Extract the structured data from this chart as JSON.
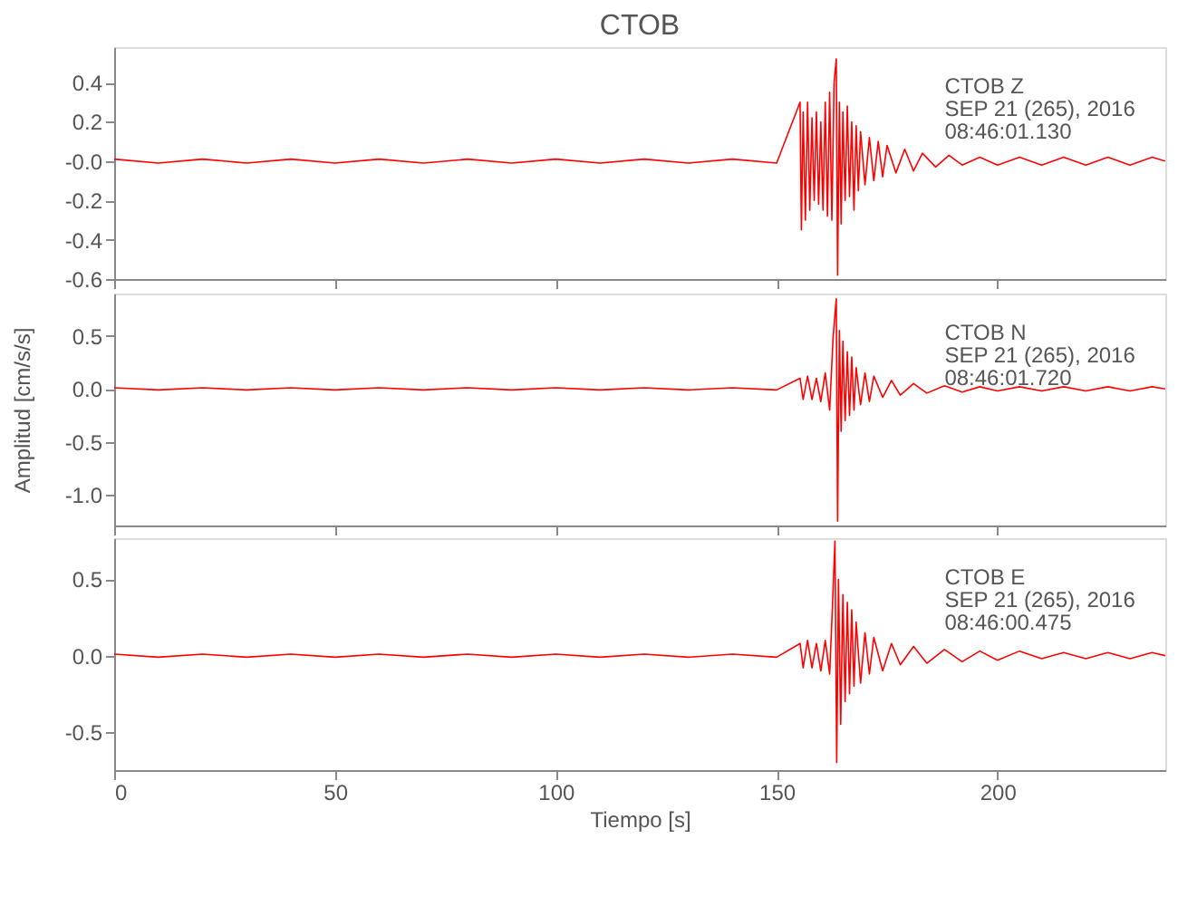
{
  "chart_data": [
    {
      "type": "line",
      "title": "CTOB",
      "annotations": [
        "CTOB   Z",
        "SEP 21 (265), 2016",
        "08:46:01.130"
      ],
      "xlim": [
        0,
        238
      ],
      "xticks": [
        0,
        50,
        100,
        150,
        200
      ],
      "ylim": [
        -0.6,
        0.58
      ],
      "yticks": [
        {
          "value": -0.6,
          "label": "-0.6"
        },
        {
          "value": -0.4,
          "label": "-0.4"
        },
        {
          "value": -0.2,
          "label": "-0.2"
        },
        {
          "value": 0,
          "label": "-0.0"
        },
        {
          "value": 0.2,
          "label": "0.2"
        },
        {
          "value": 0.4,
          "label": "0.4"
        }
      ],
      "tick_labels": "y",
      "grid": false,
      "marker": "none",
      "line_style": "solid",
      "series": [
        {
          "color": "#ff0000",
          "x": [
            0,
            10,
            20,
            30,
            40,
            50,
            60,
            70,
            80,
            90,
            100,
            110,
            120,
            130,
            140,
            150,
            155.3,
            155.6,
            156,
            156.5,
            157,
            157.5,
            158,
            158.5,
            159,
            159.5,
            160,
            160.5,
            161,
            161.5,
            162,
            162.5,
            163,
            163.5,
            163.8,
            164.2,
            164.6,
            165,
            165.5,
            166,
            166.5,
            167,
            167.5,
            168,
            168.5,
            169,
            170,
            171,
            172,
            173,
            174,
            175,
            177,
            179,
            181,
            183,
            186,
            189,
            192,
            196,
            200,
            205,
            210,
            215,
            220,
            225,
            230,
            235,
            238
          ],
          "values": [
            0.01,
            -0.01,
            0.01,
            -0.01,
            0.01,
            -0.01,
            0.01,
            -0.01,
            0.01,
            -0.01,
            0.01,
            -0.01,
            0.01,
            -0.01,
            0.01,
            -0.01,
            0.3,
            -0.35,
            0.25,
            -0.3,
            0.3,
            -0.25,
            0.22,
            -0.2,
            0.25,
            -0.22,
            0.2,
            -0.25,
            0.3,
            -0.28,
            0.35,
            -0.3,
            0.4,
            0.52,
            -0.58,
            0.3,
            -0.32,
            0.25,
            -0.2,
            0.28,
            -0.18,
            0.2,
            -0.25,
            0.18,
            -0.15,
            0.15,
            -0.12,
            0.12,
            -0.1,
            0.1,
            -0.08,
            0.08,
            -0.06,
            0.06,
            -0.05,
            0.04,
            -0.03,
            0.03,
            -0.02,
            0.02,
            -0.02,
            0.02,
            -0.02,
            0.02,
            -0.02,
            0.02,
            -0.02,
            0.02,
            0
          ]
        }
      ]
    },
    {
      "type": "line",
      "ylabel": "Amplitud [cm/s/s]",
      "annotations": [
        "CTOB   N",
        "SEP 21 (265), 2016",
        "08:46:01.720"
      ],
      "xlim": [
        0,
        238
      ],
      "xticks": [
        0,
        50,
        100,
        150,
        200
      ],
      "ylim": [
        -1.29,
        0.9
      ],
      "yticks": [
        {
          "value": -1,
          "label": "-1.0"
        },
        {
          "value": -0.5,
          "label": "-0.5"
        },
        {
          "value": 0,
          "label": "0.0"
        },
        {
          "value": 0.5,
          "label": "0.5"
        }
      ],
      "tick_labels": "y",
      "grid": false,
      "marker": "none",
      "line_style": "solid",
      "series": [
        {
          "color": "#ff0000",
          "x": [
            0,
            10,
            20,
            30,
            40,
            50,
            60,
            70,
            80,
            90,
            100,
            110,
            120,
            130,
            140,
            150,
            155.3,
            156,
            157,
            158,
            159,
            160,
            161,
            162,
            162.8,
            163.5,
            163.8,
            164.2,
            164.6,
            165,
            165.5,
            166,
            166.5,
            167,
            167.5,
            168,
            169,
            170,
            171,
            172,
            174,
            176,
            178,
            181,
            184,
            188,
            192,
            196,
            200,
            205,
            210,
            215,
            220,
            225,
            230,
            235,
            238
          ],
          "values": [
            0.01,
            -0.01,
            0.01,
            -0.01,
            0.01,
            -0.01,
            0.01,
            -0.01,
            0.01,
            -0.01,
            0.01,
            -0.01,
            0.01,
            -0.01,
            0.01,
            -0.01,
            0.1,
            -0.1,
            0.12,
            -0.1,
            0.1,
            -0.12,
            0.15,
            -0.2,
            0.5,
            0.85,
            -1.25,
            0.55,
            -0.4,
            0.45,
            -0.3,
            0.35,
            -0.25,
            0.3,
            -0.2,
            0.2,
            -0.15,
            0.15,
            -0.12,
            0.12,
            -0.08,
            0.08,
            -0.06,
            0.05,
            -0.04,
            0.03,
            -0.03,
            0.02,
            -0.02,
            0.02,
            -0.02,
            0.02,
            -0.02,
            0.02,
            -0.02,
            0.02,
            0
          ]
        }
      ]
    },
    {
      "type": "line",
      "xlabel": "Tiempo [s]",
      "annotations": [
        "CTOB   E",
        "SEP 21 (265), 2016",
        "08:46:00.475"
      ],
      "xlim": [
        0,
        238
      ],
      "xticks": [
        0,
        50,
        100,
        150,
        200
      ],
      "ylim": [
        -0.75,
        0.77
      ],
      "yticks": [
        {
          "value": -0.5,
          "label": "-0.5"
        },
        {
          "value": 0,
          "label": "0.0"
        },
        {
          "value": 0.5,
          "label": "0.5"
        }
      ],
      "grid": false,
      "marker": "none",
      "line_style": "solid",
      "series": [
        {
          "color": "#ff0000",
          "x": [
            0,
            10,
            20,
            30,
            40,
            50,
            60,
            70,
            80,
            90,
            100,
            110,
            120,
            130,
            140,
            150,
            155.3,
            156,
            157,
            158,
            159,
            160,
            161,
            162,
            162.6,
            163.2,
            163.6,
            164,
            164.5,
            165,
            165.5,
            166,
            166.5,
            167,
            167.5,
            168,
            169,
            170,
            171,
            172,
            174,
            176,
            178,
            181,
            184,
            188,
            192,
            196,
            200,
            205,
            210,
            215,
            220,
            225,
            230,
            235,
            238
          ],
          "values": [
            0.01,
            -0.01,
            0.01,
            -0.01,
            0.01,
            -0.01,
            0.01,
            -0.01,
            0.01,
            -0.01,
            0.01,
            -0.01,
            0.01,
            -0.01,
            0.01,
            -0.01,
            0.08,
            -0.08,
            0.1,
            -0.08,
            0.08,
            -0.1,
            0.1,
            -0.12,
            0.3,
            0.75,
            -0.7,
            0.5,
            -0.45,
            0.4,
            -0.3,
            0.35,
            -0.25,
            0.3,
            -0.2,
            0.22,
            -0.18,
            0.15,
            -0.12,
            0.12,
            -0.1,
            0.08,
            -0.06,
            0.06,
            -0.05,
            0.04,
            -0.04,
            0.03,
            -0.03,
            0.03,
            -0.02,
            0.02,
            -0.02,
            0.02,
            -0.02,
            0.02,
            0
          ]
        }
      ]
    }
  ]
}
